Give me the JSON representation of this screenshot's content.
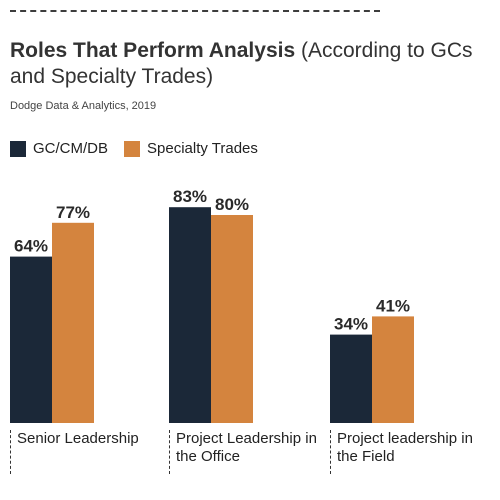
{
  "header": {
    "title_bold": "Roles That Perform Analysis",
    "title_rest": " (According to GCs and Specialty Trades)",
    "source": "Dodge Data & Analytics, 2019"
  },
  "colors": {
    "gc": "#1b2838",
    "trades": "#d4843e"
  },
  "chart_data": {
    "type": "bar",
    "title": "Roles That Perform Analysis (According to GCs and Specialty Trades)",
    "categories": [
      "Senior Leadership",
      "Project Leadership in the Office",
      "Project leadership in the Field"
    ],
    "series": [
      {
        "name": "GC/CM/DB",
        "values": [
          64,
          83,
          34
        ],
        "labels": [
          "64%",
          "83%",
          "34%"
        ]
      },
      {
        "name": "Specialty Trades",
        "values": [
          77,
          80,
          41
        ],
        "labels": [
          "77%",
          "80%",
          "41%"
        ]
      }
    ],
    "ylim": [
      0,
      100
    ],
    "grid": false,
    "legend": "top-left"
  }
}
